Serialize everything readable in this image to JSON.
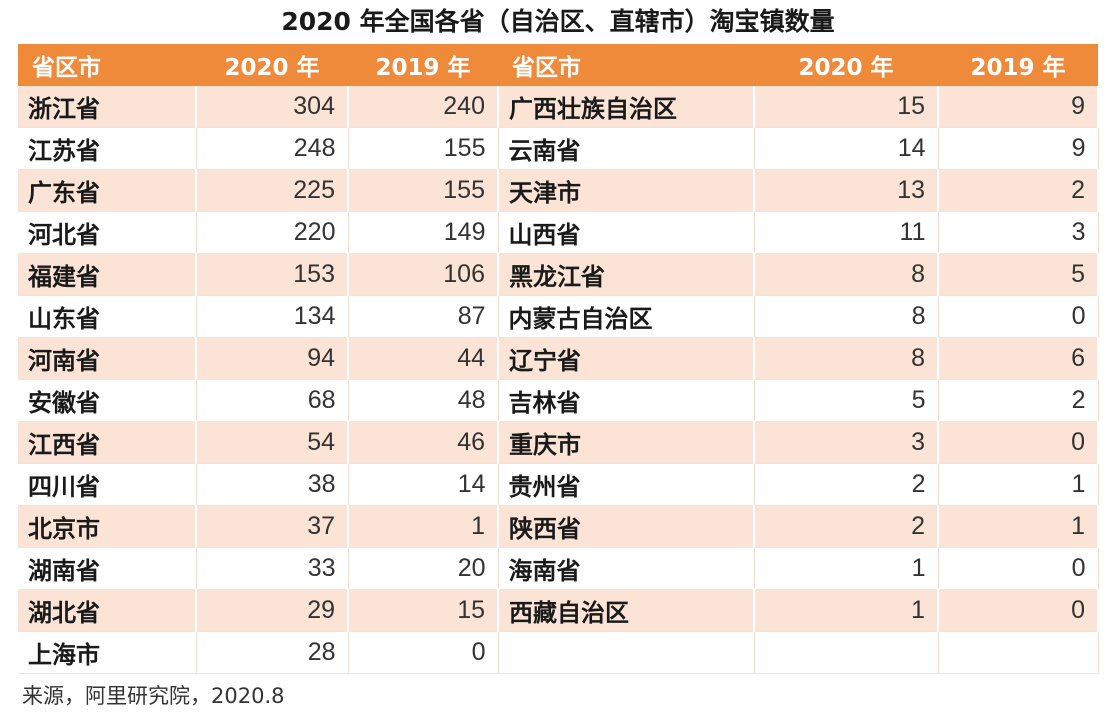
{
  "title": "2020 年全国各省（自治区、直辖市）淘宝镇数量",
  "headers": [
    "省区市",
    "2020 年",
    "2019 年",
    "省区市",
    "2020 年",
    "2019 年"
  ],
  "left_rows": [
    {
      "name": "浙江省",
      "y2020": "304",
      "y2019": "240"
    },
    {
      "name": "江苏省",
      "y2020": "248",
      "y2019": "155"
    },
    {
      "name": "广东省",
      "y2020": "225",
      "y2019": "155"
    },
    {
      "name": "河北省",
      "y2020": "220",
      "y2019": "149"
    },
    {
      "name": "福建省",
      "y2020": "153",
      "y2019": "106"
    },
    {
      "name": "山东省",
      "y2020": "134",
      "y2019": "87"
    },
    {
      "name": "河南省",
      "y2020": "94",
      "y2019": "44"
    },
    {
      "name": "安徽省",
      "y2020": "68",
      "y2019": "48"
    },
    {
      "name": "江西省",
      "y2020": "54",
      "y2019": "46"
    },
    {
      "name": "四川省",
      "y2020": "38",
      "y2019": "14"
    },
    {
      "name": "北京市",
      "y2020": "37",
      "y2019": "1"
    },
    {
      "name": "湖南省",
      "y2020": "33",
      "y2019": "20"
    },
    {
      "name": "湖北省",
      "y2020": "29",
      "y2019": "15"
    },
    {
      "name": "上海市",
      "y2020": "28",
      "y2019": "0"
    }
  ],
  "right_rows": [
    {
      "name": "广西壮族自治区",
      "y2020": "15",
      "y2019": "9"
    },
    {
      "name": "云南省",
      "y2020": "14",
      "y2019": "9"
    },
    {
      "name": "天津市",
      "y2020": "13",
      "y2019": "2"
    },
    {
      "name": "山西省",
      "y2020": "11",
      "y2019": "3"
    },
    {
      "name": "黑龙江省",
      "y2020": "8",
      "y2019": "5"
    },
    {
      "name": "内蒙古自治区",
      "y2020": "8",
      "y2019": "0"
    },
    {
      "name": "辽宁省",
      "y2020": "8",
      "y2019": "6"
    },
    {
      "name": "吉林省",
      "y2020": "5",
      "y2019": "2"
    },
    {
      "name": "重庆市",
      "y2020": "3",
      "y2019": "0"
    },
    {
      "name": "贵州省",
      "y2020": "2",
      "y2019": "1"
    },
    {
      "name": "陕西省",
      "y2020": "2",
      "y2019": "1"
    },
    {
      "name": "海南省",
      "y2020": "1",
      "y2019": "0"
    },
    {
      "name": "西藏自治区",
      "y2020": "1",
      "y2019": "0"
    }
  ],
  "source": "来源，阿里研究院，2020.8",
  "colors": {
    "header_bg": "#ef8a3a",
    "stripe_bg": "#fbe4d6"
  },
  "chart_data": {
    "type": "table",
    "title": "2020 年全国各省（自治区、直辖市）淘宝镇数量",
    "columns": [
      "省区市",
      "2020 年",
      "2019 年"
    ],
    "rows": [
      [
        "浙江省",
        304,
        240
      ],
      [
        "江苏省",
        248,
        155
      ],
      [
        "广东省",
        225,
        155
      ],
      [
        "河北省",
        220,
        149
      ],
      [
        "福建省",
        153,
        106
      ],
      [
        "山东省",
        134,
        87
      ],
      [
        "河南省",
        94,
        44
      ],
      [
        "安徽省",
        68,
        48
      ],
      [
        "江西省",
        54,
        46
      ],
      [
        "四川省",
        38,
        14
      ],
      [
        "北京市",
        37,
        1
      ],
      [
        "湖南省",
        33,
        20
      ],
      [
        "湖北省",
        29,
        15
      ],
      [
        "上海市",
        28,
        0
      ],
      [
        "广西壮族自治区",
        15,
        9
      ],
      [
        "云南省",
        14,
        9
      ],
      [
        "天津市",
        13,
        2
      ],
      [
        "山西省",
        11,
        3
      ],
      [
        "黑龙江省",
        8,
        5
      ],
      [
        "内蒙古自治区",
        8,
        0
      ],
      [
        "辽宁省",
        8,
        6
      ],
      [
        "吉林省",
        5,
        2
      ],
      [
        "重庆市",
        3,
        0
      ],
      [
        "贵州省",
        2,
        1
      ],
      [
        "陕西省",
        2,
        1
      ],
      [
        "海南省",
        1,
        0
      ],
      [
        "西藏自治区",
        1,
        0
      ]
    ]
  }
}
